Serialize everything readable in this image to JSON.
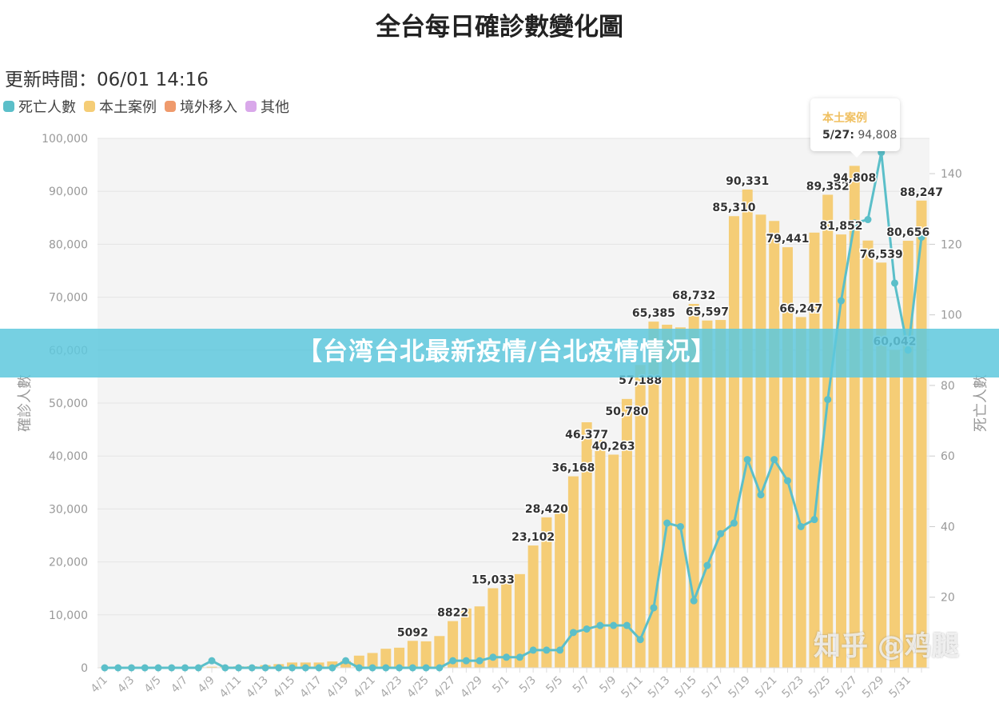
{
  "chart_data": {
    "type": "bar",
    "title": "全台每日確診數變化圖",
    "updated_label": "更新時間：",
    "updated_time": "06/01 14:16",
    "ylabel": "確診人數",
    "y2label": "死亡人數",
    "ylim": [
      0,
      100000
    ],
    "y2lim": [
      0,
      150
    ],
    "yticks": [
      0,
      10000,
      20000,
      30000,
      40000,
      50000,
      60000,
      70000,
      80000,
      90000,
      100000
    ],
    "ytick_labels": [
      "0",
      "10,000",
      "20,000",
      "30,000",
      "40,000",
      "50,000",
      "60,000",
      "70,000",
      "80,000",
      "90,000",
      "100,000"
    ],
    "y2ticks": [
      20,
      40,
      60,
      80,
      100,
      120,
      140
    ],
    "y2tick_labels": [
      "20",
      "40",
      "60",
      "80",
      "100",
      "120",
      "140"
    ],
    "grid": true,
    "legend": [
      {
        "name": "死亡人數",
        "color": "#5bbfc9"
      },
      {
        "name": "本土案例",
        "color": "#f5cd76"
      },
      {
        "name": "境外移入",
        "color": "#ef9a6c"
      },
      {
        "name": "其他",
        "color": "#d9a8ea"
      }
    ],
    "categories": [
      "4/1",
      "4/2",
      "4/3",
      "4/4",
      "4/5",
      "4/6",
      "4/7",
      "4/8",
      "4/9",
      "4/10",
      "4/11",
      "4/12",
      "4/13",
      "4/14",
      "4/15",
      "4/16",
      "4/17",
      "4/18",
      "4/19",
      "4/20",
      "4/21",
      "4/22",
      "4/23",
      "4/24",
      "4/25",
      "4/26",
      "4/27",
      "4/28",
      "4/29",
      "4/30",
      "5/1",
      "5/2",
      "5/3",
      "5/4",
      "5/5",
      "5/6",
      "5/7",
      "5/8",
      "5/9",
      "5/10",
      "5/11",
      "5/12",
      "5/13",
      "5/14",
      "5/15",
      "5/16",
      "5/17",
      "5/18",
      "5/19",
      "5/20",
      "5/21",
      "5/22",
      "5/23",
      "5/24",
      "5/25",
      "5/26",
      "5/27",
      "5/28",
      "5/29",
      "5/30",
      "5/31",
      "6/1"
    ],
    "series": [
      {
        "name": "本土案例",
        "type": "bar",
        "axis": "left",
        "values": [
          100,
          90,
          120,
          130,
          150,
          140,
          160,
          180,
          200,
          250,
          280,
          300,
          500,
          700,
          1000,
          1000,
          1000,
          1200,
          1300,
          2300,
          2800,
          3600,
          3800,
          5092,
          5000,
          6000,
          8822,
          11200,
          11600,
          15033,
          16800,
          17700,
          23102,
          28420,
          30000,
          36168,
          46377,
          43000,
          40263,
          50780,
          57188,
          65385,
          64800,
          64300,
          68732,
          65597,
          65700,
          85310,
          90331,
          85600,
          84400,
          79441,
          66247,
          82200,
          89352,
          81852,
          94808,
          80700,
          76539,
          60042,
          80656,
          88247
        ]
      },
      {
        "name": "死亡人數",
        "type": "line",
        "axis": "right",
        "values": [
          0,
          0,
          0,
          0,
          0,
          0,
          0,
          0,
          2,
          0,
          0,
          0,
          0,
          0,
          0,
          0,
          0,
          0,
          2,
          0,
          0,
          0,
          0,
          0,
          0,
          0,
          2,
          2,
          2,
          3,
          3,
          3,
          5,
          5,
          5,
          10,
          11,
          12,
          12,
          12,
          8,
          17,
          41,
          40,
          19,
          29,
          38,
          41,
          59,
          49,
          59,
          53,
          40,
          42,
          76,
          104,
          126,
          127,
          146,
          109,
          90,
          122
        ]
      }
    ],
    "data_labels": {
      "4/24": "5092",
      "4/27": "8822",
      "4/30": "15,033",
      "5/3": "23,102",
      "5/4": "28,420",
      "5/6": "36,168",
      "5/7": "46,377",
      "5/9": "40,263",
      "5/10": "50,780",
      "5/11": "57,188",
      "5/12": "65,385",
      "5/15": "68,732",
      "5/16": "65,597",
      "5/18": "85,310",
      "5/19": "90,331",
      "5/22": "79,441",
      "5/23": "66,247",
      "5/25": "89,352",
      "5/26": "81,852",
      "5/27": "94,808",
      "5/29": "76,539",
      "5/30": "60,042",
      "5/31": "80,656",
      "6/1": "88,247"
    },
    "tooltip": {
      "series": "本土案例",
      "date": "5/27:",
      "value": "94,808"
    }
  },
  "overlay": {
    "banner": "【台湾台北最新疫情/台北疫情情况】",
    "watermark": "知乎 @鸡腿"
  }
}
